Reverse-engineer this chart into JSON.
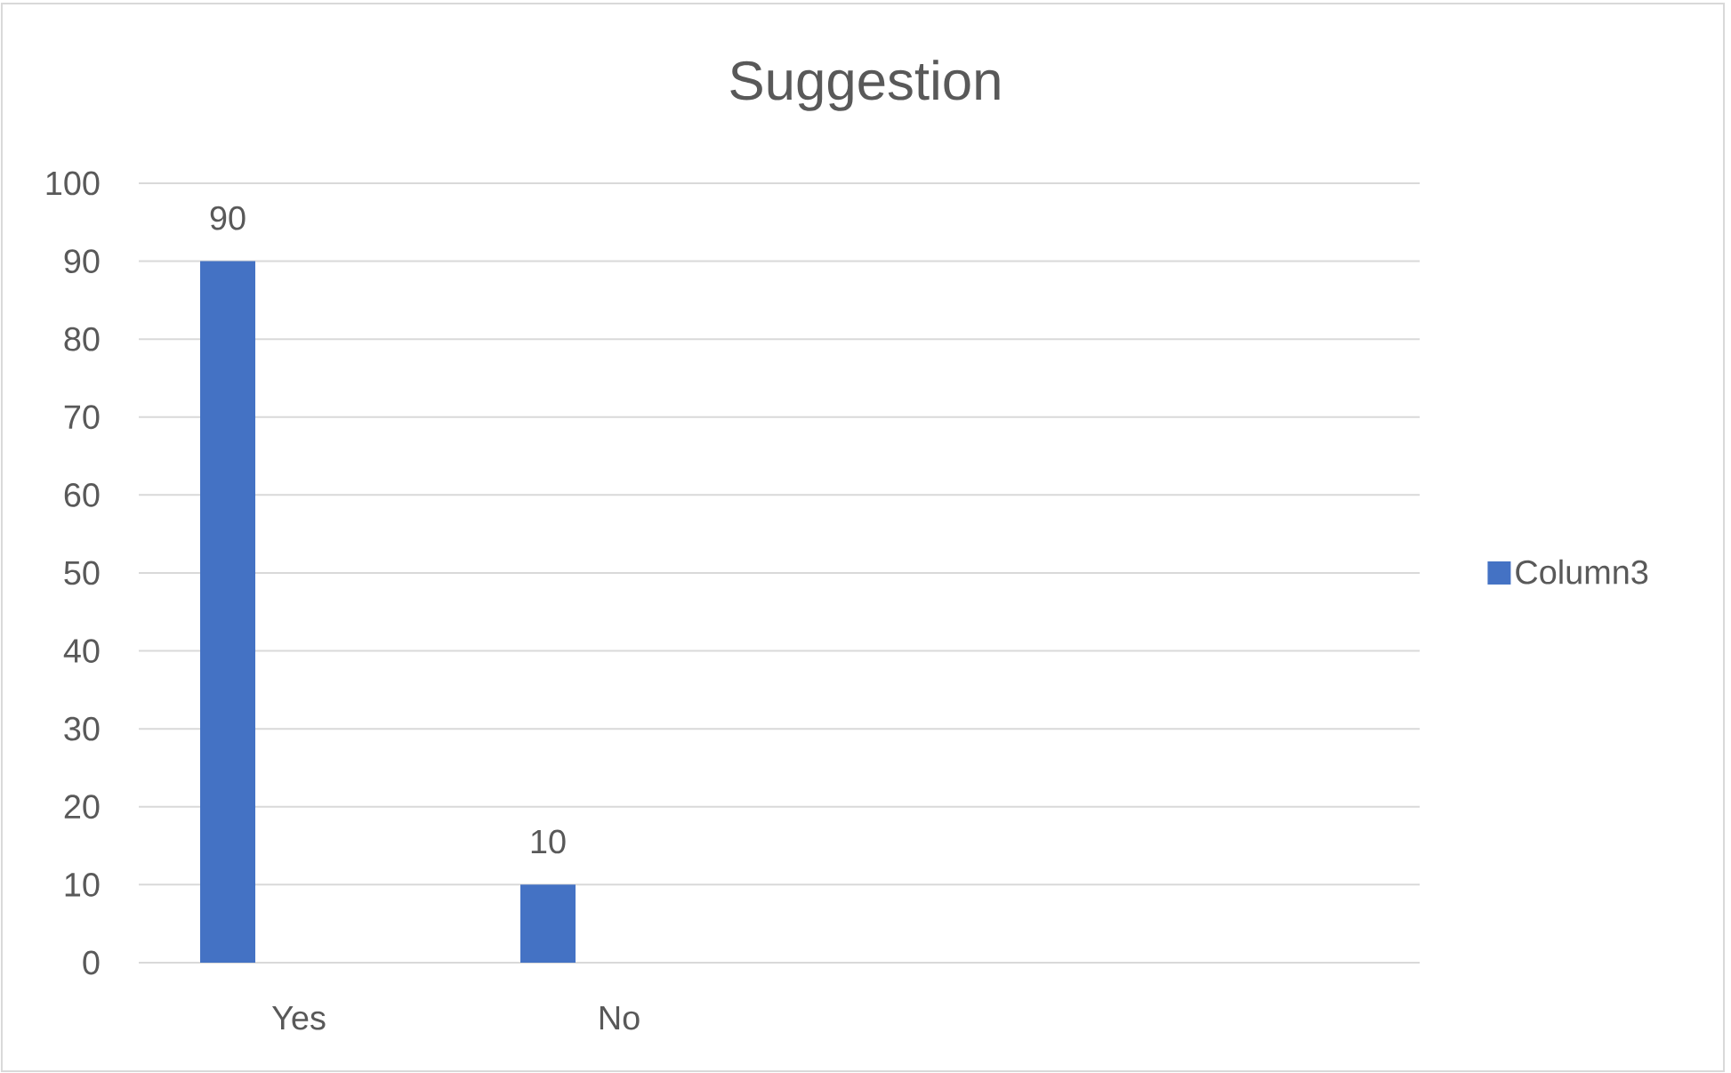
{
  "chart_data": {
    "type": "bar",
    "title": "Suggestion",
    "categories": [
      "Yes",
      "No",
      null,
      null
    ],
    "series": [
      {
        "name": "Column3",
        "color": "#4472c4",
        "values": [
          90,
          10,
          null,
          null
        ]
      }
    ],
    "ylim": [
      0,
      100
    ],
    "yticks": [
      0,
      10,
      20,
      30,
      40,
      50,
      60,
      70,
      80,
      90,
      100
    ],
    "grid": "y",
    "legend": "right",
    "data_labels": true
  }
}
